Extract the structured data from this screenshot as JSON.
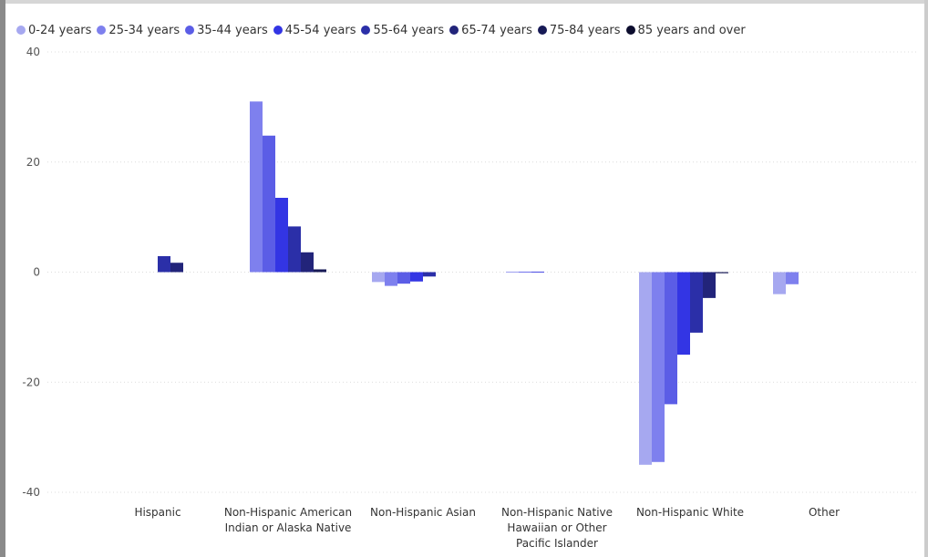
{
  "chart_data": {
    "type": "bar",
    "title": "",
    "xlabel": "",
    "ylabel": "",
    "ylim": [
      -40,
      40
    ],
    "yticks": [
      40,
      20,
      0,
      -20,
      -40
    ],
    "grid": true,
    "legend_placement": "top-left",
    "categories": [
      "Hispanic",
      "Non-Hispanic American Indian or Alaska Native",
      "Non-Hispanic Asian",
      "Non-Hispanic Native Hawaiian or Other Pacific Islander",
      "Non-Hispanic White",
      "Other"
    ],
    "category_lines": [
      [
        "Hispanic"
      ],
      [
        "Non-Hispanic American",
        "Indian or Alaska Native"
      ],
      [
        "Non-Hispanic Asian"
      ],
      [
        "Non-Hispanic Native",
        "Hawaiian or Other",
        "Pacific Islander"
      ],
      [
        "Non-Hispanic White"
      ],
      [
        "Other"
      ]
    ],
    "series": [
      {
        "name": "0-24 years",
        "color": "#a6a8f0",
        "values": [
          null,
          null,
          -1.8,
          0,
          -35,
          -4
        ]
      },
      {
        "name": "25-34 years",
        "color": "#7e80ee",
        "values": [
          null,
          31,
          -2.5,
          0,
          -34.5,
          -2.2
        ]
      },
      {
        "name": "35-44 years",
        "color": "#5b5de6",
        "values": [
          null,
          24.8,
          -2.1,
          0,
          -24,
          null
        ]
      },
      {
        "name": "45-54 years",
        "color": "#3335e4",
        "values": [
          null,
          13.5,
          -1.7,
          null,
          -15,
          null
        ]
      },
      {
        "name": "55-64 years",
        "color": "#2b2fa8",
        "values": [
          2.9,
          8.3,
          -0.8,
          null,
          -11,
          null
        ]
      },
      {
        "name": "65-74 years",
        "color": "#22247a",
        "values": [
          1.7,
          3.6,
          null,
          null,
          -4.7,
          null
        ]
      },
      {
        "name": "75-84 years",
        "color": "#171a56",
        "values": [
          null,
          0.5,
          null,
          null,
          -0.2,
          null
        ]
      },
      {
        "name": "85 years and over",
        "color": "#0c0d2e",
        "values": [
          null,
          null,
          null,
          null,
          null,
          null
        ]
      }
    ]
  }
}
